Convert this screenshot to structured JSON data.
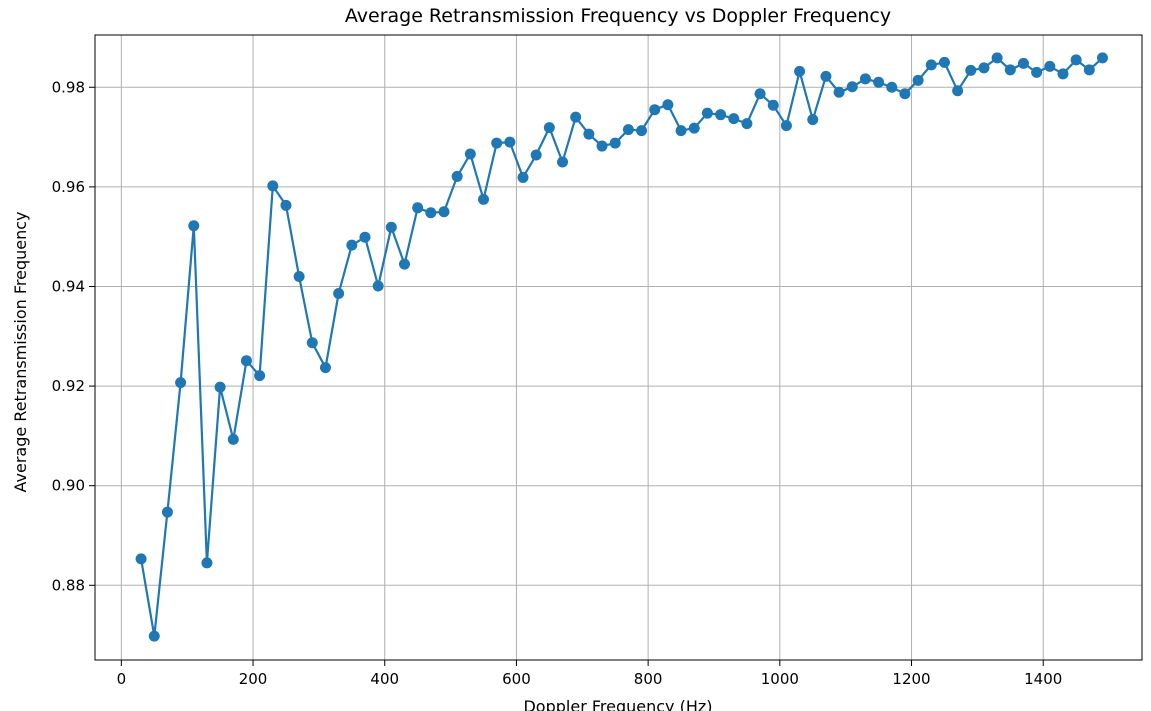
{
  "chart_data": {
    "type": "line",
    "title": "Average Retransmission Frequency vs Doppler Frequency",
    "xlabel": "Doppler Frequency (Hz)",
    "ylabel": "Average Retransmission Frequency",
    "xlim": [
      -40,
      1550
    ],
    "ylim": [
      0.865,
      0.9905
    ],
    "xticks": [
      0,
      200,
      400,
      600,
      800,
      1000,
      1200,
      1400
    ],
    "xtick_labels": [
      "0",
      "200",
      "400",
      "600",
      "800",
      "1000",
      "1200",
      "1400"
    ],
    "yticks": [
      0.88,
      0.9,
      0.92,
      0.94,
      0.96,
      0.98
    ],
    "ytick_labels": [
      "0.88",
      "0.90",
      "0.92",
      "0.94",
      "0.96",
      "0.98"
    ],
    "grid": true,
    "marker": "circle",
    "color": "#1f77b4",
    "x": [
      30,
      50,
      70,
      90,
      110,
      130,
      150,
      170,
      190,
      210,
      230,
      250,
      270,
      290,
      310,
      330,
      350,
      370,
      390,
      410,
      430,
      450,
      470,
      490,
      510,
      530,
      550,
      570,
      590,
      610,
      630,
      650,
      670,
      690,
      710,
      730,
      750,
      770,
      790,
      810,
      830,
      850,
      870,
      890,
      910,
      930,
      950,
      970,
      990,
      1010,
      1030,
      1050,
      1070,
      1090,
      1110,
      1130,
      1150,
      1170,
      1190,
      1210,
      1230,
      1250,
      1270,
      1290,
      1310,
      1330,
      1350,
      1370,
      1390,
      1410,
      1430,
      1450,
      1470,
      1490
    ],
    "y": [
      0.8853,
      0.8698,
      0.8947,
      0.9207,
      0.9522,
      0.8845,
      0.9198,
      0.9093,
      0.9251,
      0.9221,
      0.9602,
      0.9563,
      0.942,
      0.9287,
      0.9237,
      0.9386,
      0.9483,
      0.9499,
      0.9401,
      0.9519,
      0.9445,
      0.9558,
      0.9548,
      0.955,
      0.9621,
      0.9666,
      0.9575,
      0.9688,
      0.969,
      0.9619,
      0.9664,
      0.9719,
      0.965,
      0.974,
      0.9706,
      0.9682,
      0.9688,
      0.9715,
      0.9713,
      0.9755,
      0.9765,
      0.9713,
      0.9718,
      0.9748,
      0.9745,
      0.9737,
      0.9727,
      0.9787,
      0.9764,
      0.9723,
      0.9832,
      0.9735,
      0.9822,
      0.979,
      0.9801,
      0.9817,
      0.981,
      0.98,
      0.9787,
      0.9814,
      0.9845,
      0.985,
      0.9793,
      0.9834,
      0.9839,
      0.9859,
      0.9835,
      0.9848,
      0.983,
      0.9842,
      0.9827,
      0.9855,
      0.9835,
      0.9859
    ]
  }
}
